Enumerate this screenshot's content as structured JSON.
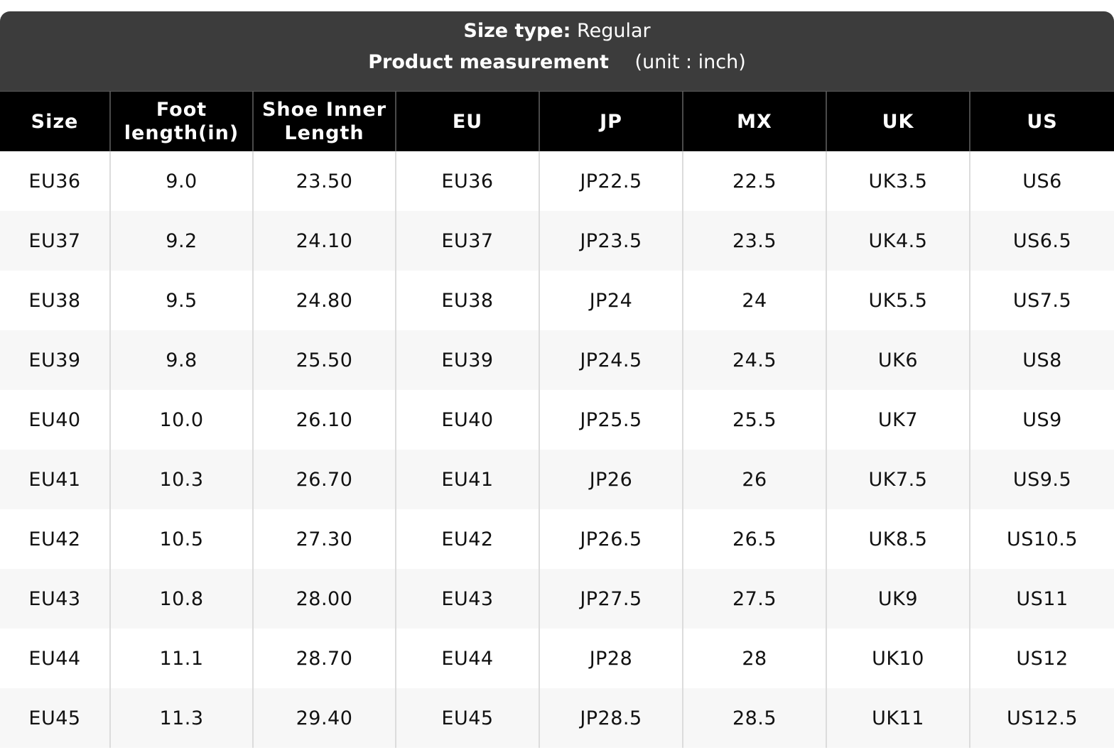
{
  "header": {
    "size_type_label": "Size type:",
    "size_type_value": "Regular",
    "measurement_label": "Product measurement",
    "unit_text": "(unit : inch)"
  },
  "table": {
    "columns": [
      "Size",
      "Foot length(in)",
      "Shoe Inner Length",
      "EU",
      "JP",
      "MX",
      "UK",
      "US"
    ],
    "rows": [
      [
        "EU36",
        "9.0",
        "23.50",
        "EU36",
        "JP22.5",
        "22.5",
        "UK3.5",
        "US6"
      ],
      [
        "EU37",
        "9.2",
        "24.10",
        "EU37",
        "JP23.5",
        "23.5",
        "UK4.5",
        "US6.5"
      ],
      [
        "EU38",
        "9.5",
        "24.80",
        "EU38",
        "JP24",
        "24",
        "UK5.5",
        "US7.5"
      ],
      [
        "EU39",
        "9.8",
        "25.50",
        "EU39",
        "JP24.5",
        "24.5",
        "UK6",
        "US8"
      ],
      [
        "EU40",
        "10.0",
        "26.10",
        "EU40",
        "JP25.5",
        "25.5",
        "UK7",
        "US9"
      ],
      [
        "EU41",
        "10.3",
        "26.70",
        "EU41",
        "JP26",
        "26",
        "UK7.5",
        "US9.5"
      ],
      [
        "EU42",
        "10.5",
        "27.30",
        "EU42",
        "JP26.5",
        "26.5",
        "UK8.5",
        "US10.5"
      ],
      [
        "EU43",
        "10.8",
        "28.00",
        "EU43",
        "JP27.5",
        "27.5",
        "UK9",
        "US11"
      ],
      [
        "EU44",
        "11.1",
        "28.70",
        "EU44",
        "JP28",
        "28",
        "UK10",
        "US12"
      ],
      [
        "EU45",
        "11.3",
        "29.40",
        "EU45",
        "JP28.5",
        "28.5",
        "UK11",
        "US12.5"
      ]
    ]
  },
  "colors": {
    "header_bg": "#3c3c3c",
    "column_header_bg": "#000000",
    "row_alt_bg": "#f7f7f7"
  }
}
